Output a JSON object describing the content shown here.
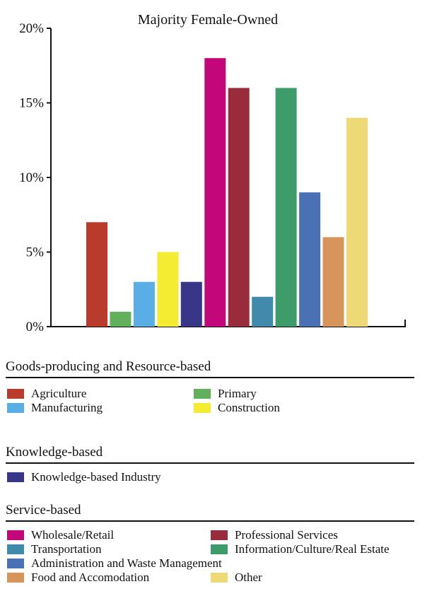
{
  "chart_data": {
    "type": "bar",
    "title": "Majority Female-Owned",
    "xlabel": "",
    "ylabel": "",
    "ylim": [
      0,
      20
    ],
    "yticks": [
      "0%",
      "5%",
      "10%",
      "15%",
      "20%"
    ],
    "ytick_values": [
      0,
      5,
      10,
      15,
      20
    ],
    "grid": false,
    "legend_placement": "bottom",
    "categories": [
      "Agriculture",
      "Primary",
      "Manufacturing",
      "Construction",
      "Knowledge-based Industry",
      "Wholesale/Retail",
      "Professional Services",
      "Transportation",
      "Information/Culture/Real Estate",
      "Administration and Waste Management",
      "Food and Accomodation",
      "Other"
    ],
    "values": [
      7,
      1,
      3,
      5,
      3,
      18,
      16,
      2,
      16,
      9,
      6,
      14
    ],
    "colors": [
      "#b93b2c",
      "#62b05c",
      "#5aaee6",
      "#f3ec33",
      "#383688",
      "#c3077b",
      "#9a2b3b",
      "#418aab",
      "#3e9c6b",
      "#4a70b6",
      "#d7955b",
      "#eed977"
    ]
  },
  "legend_groups": [
    {
      "title": "Goods-producing and Resource-based",
      "items": [
        {
          "label": "Agriculture",
          "color": "#b93b2c"
        },
        {
          "label": "Primary",
          "color": "#62b05c"
        },
        {
          "label": "Manufacturing",
          "color": "#5aaee6"
        },
        {
          "label": "Construction",
          "color": "#f3ec33"
        }
      ]
    },
    {
      "title": "Knowledge-based",
      "items": [
        {
          "label": "Knowledge-based Industry",
          "color": "#383688"
        }
      ]
    },
    {
      "title": "Service-based",
      "items": [
        {
          "label": "Wholesale/Retail",
          "color": "#c3077b"
        },
        {
          "label": "Professional Services",
          "color": "#9a2b3b"
        },
        {
          "label": "Transportation",
          "color": "#418aab"
        },
        {
          "label": "Information/Culture/Real Estate",
          "color": "#3e9c6b"
        },
        {
          "label": "Administration and Waste Management",
          "color": "#4a70b6"
        },
        {
          "label": "Food and Accomodation",
          "color": "#d7955b"
        },
        {
          "label": "Other",
          "color": "#eed977"
        }
      ]
    }
  ]
}
